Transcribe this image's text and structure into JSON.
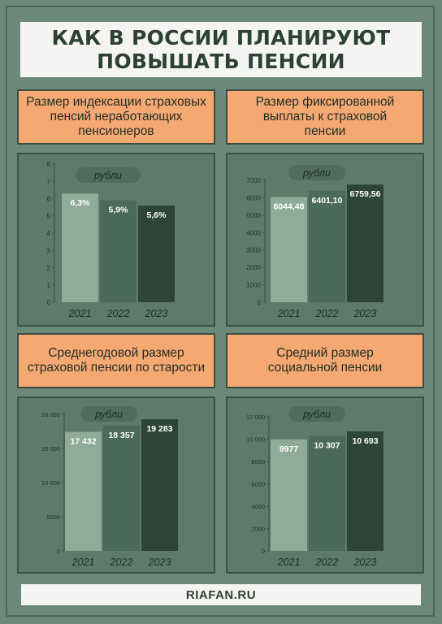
{
  "title": {
    "line1": "КАК В РОССИИ ПЛАНИРУЮТ",
    "line2": "ПОВЫШАТЬ ПЕНСИИ"
  },
  "footer": {
    "site": "RIAFAN.RU"
  },
  "colors": {
    "background": "#6c8878",
    "panel": "#5e7a6a",
    "header_orange": "#f5a872",
    "bar_2021": "#8fab99",
    "bar_2022": "#4c6a59",
    "bar_2023": "#2d4538",
    "unit_pill": "#4f6c5c"
  },
  "chart_data": [
    {
      "type": "bar",
      "title_lines": [
        "Размер индексации страховых",
        "пенсий неработающих",
        "пенсионеров"
      ],
      "unit_label": "рубли",
      "categories": [
        "2021",
        "2022",
        "2023"
      ],
      "values": [
        6.3,
        5.9,
        5.6
      ],
      "value_labels": [
        "6,3%",
        "5,9%",
        "5,6%"
      ],
      "ylim": [
        0,
        8
      ],
      "yticks": [
        0,
        1,
        2,
        3,
        4,
        5,
        6,
        7,
        8
      ],
      "ytick_labels": [
        "0",
        "1",
        "2",
        "3",
        "4",
        "5",
        "6",
        "7",
        "8"
      ]
    },
    {
      "type": "bar",
      "title_lines": [
        "Размер фиксированной",
        "выплаты к страховой",
        "пенсии"
      ],
      "unit_label": "рубли",
      "categories": [
        "2021",
        "2022",
        "2023"
      ],
      "values": [
        6044.48,
        6401.1,
        6759.56
      ],
      "value_labels": [
        "6044,48",
        "6401,10",
        "6759,56"
      ],
      "ylim": [
        0,
        7000
      ],
      "yticks": [
        0,
        1000,
        2000,
        3000,
        4000,
        5000,
        6000,
        7000
      ],
      "ytick_labels": [
        "0",
        "1000",
        "2000",
        "3000",
        "4000",
        "5000",
        "6000",
        "7000"
      ]
    },
    {
      "type": "bar",
      "title_lines": [
        "Среднегодовой размер",
        "страховой пенсии по старости"
      ],
      "unit_label": "рубли",
      "categories": [
        "2021",
        "2022",
        "2023"
      ],
      "values": [
        17432,
        18357,
        19283
      ],
      "value_labels": [
        "17 432",
        "18 357",
        "19 283"
      ],
      "ylim": [
        0,
        20000
      ],
      "yticks": [
        0,
        5000,
        10000,
        15000,
        20000
      ],
      "ytick_labels": [
        "0",
        "5000",
        "10 000",
        "15 000",
        "20 000"
      ]
    },
    {
      "type": "bar",
      "title_lines": [
        "Средний размер",
        "социальной пенсии"
      ],
      "unit_label": "рубли",
      "categories": [
        "2021",
        "2022",
        "2023"
      ],
      "values": [
        9977,
        10307,
        10693
      ],
      "value_labels": [
        "9977",
        "10 307",
        "10 693"
      ],
      "ylim": [
        0,
        12000
      ],
      "yticks": [
        0,
        2000,
        4000,
        6000,
        8000,
        10000,
        12000
      ],
      "ytick_labels": [
        "0",
        "2000",
        "4000",
        "6000",
        "8000",
        "10 000",
        "12 000"
      ]
    }
  ]
}
